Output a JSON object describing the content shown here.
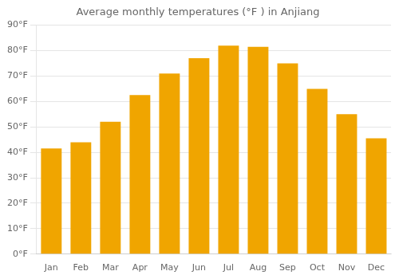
{
  "chart_data": {
    "type": "bar",
    "title": "Average monthly temperatures (°F ) in Anjiang",
    "categories": [
      "Jan",
      "Feb",
      "Mar",
      "Apr",
      "May",
      "Jun",
      "Jul",
      "Aug",
      "Sep",
      "Oct",
      "Nov",
      "Dec"
    ],
    "values": [
      41.5,
      44.0,
      52.0,
      62.5,
      71.0,
      77.0,
      82.0,
      81.5,
      75.0,
      65.0,
      55.0,
      45.5
    ],
    "color": "#F0A500",
    "ylim": [
      0,
      90
    ],
    "yticks": [
      {
        "value": 0,
        "label": "0°F"
      },
      {
        "value": 10,
        "label": "10°F"
      },
      {
        "value": 20,
        "label": "20°F"
      },
      {
        "value": 30,
        "label": "30°F"
      },
      {
        "value": 40,
        "label": "40°F"
      },
      {
        "value": 50,
        "label": "50°F"
      },
      {
        "value": 60,
        "label": "60°F"
      },
      {
        "value": 70,
        "label": "70°F"
      },
      {
        "value": 80,
        "label": "80°F"
      },
      {
        "value": 90,
        "label": "90°F"
      }
    ],
    "grid": true
  }
}
